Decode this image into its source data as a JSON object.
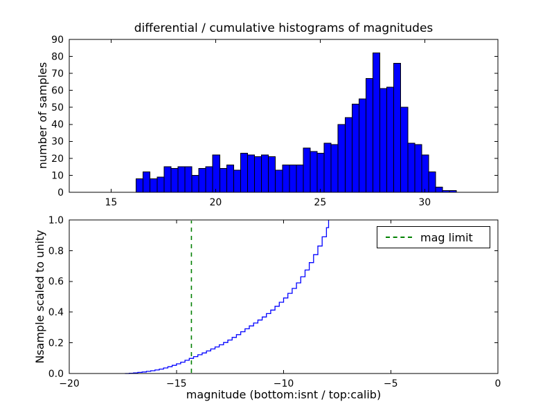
{
  "figure": {
    "title": "differential / cumulative histograms of magnitudes",
    "background": "#ffffff",
    "axis_color": "#000000"
  },
  "chart_data": [
    {
      "id": "differential-histogram",
      "type": "bar",
      "ylabel": "number of samples",
      "xlim": [
        13,
        33.5
      ],
      "ylim": [
        0,
        90
      ],
      "xtick_values": [
        15,
        20,
        25,
        30
      ],
      "xtick_labels": [
        "15",
        "20",
        "25",
        "30"
      ],
      "ytick_values": [
        0,
        10,
        20,
        30,
        40,
        50,
        60,
        70,
        80,
        90
      ],
      "ytick_labels": [
        "0",
        "10",
        "20",
        "30",
        "40",
        "50",
        "60",
        "70",
        "80",
        "90"
      ],
      "bin_start": 16.2,
      "bin_width": 0.333,
      "counts": [
        8,
        12,
        8,
        9,
        15,
        14,
        15,
        15,
        10,
        14,
        15,
        22,
        14,
        16,
        13,
        23,
        22,
        21,
        22,
        21,
        13,
        16,
        16,
        16,
        26,
        24,
        23,
        29,
        28,
        40,
        44,
        52,
        55,
        67,
        82,
        61,
        62,
        76,
        50,
        29,
        28,
        22,
        12,
        3,
        1,
        1
      ],
      "bar_fill": "#0000ff",
      "bar_edge": "#000000",
      "grid": false
    },
    {
      "id": "cumulative-histogram",
      "type": "line",
      "ylabel": "Nsample scaled to unity",
      "xlabel": "magnitude (bottom:isnt / top:calib)",
      "xlim": [
        -20,
        0
      ],
      "ylim": [
        0,
        1
      ],
      "xtick_values": [
        -20,
        -15,
        -10,
        -5,
        0
      ],
      "xtick_labels": [
        "−20",
        "−15",
        "−10",
        "−5",
        "0"
      ],
      "ytick_values": [
        0,
        0.2,
        0.4,
        0.6,
        0.8,
        1.0
      ],
      "ytick_labels": [
        "0.0",
        "0.2",
        "0.4",
        "0.6",
        "0.8",
        "1.0"
      ],
      "line_color": "#0000ff",
      "step_points": [
        [
          -17.4,
          0
        ],
        [
          -17.2,
          0.002
        ],
        [
          -17.0,
          0.004
        ],
        [
          -16.8,
          0.007
        ],
        [
          -16.6,
          0.01
        ],
        [
          -16.4,
          0.014
        ],
        [
          -16.2,
          0.018
        ],
        [
          -16.0,
          0.023
        ],
        [
          -15.8,
          0.029
        ],
        [
          -15.6,
          0.036
        ],
        [
          -15.4,
          0.044
        ],
        [
          -15.2,
          0.053
        ],
        [
          -15.0,
          0.063
        ],
        [
          -14.8,
          0.074
        ],
        [
          -14.6,
          0.086
        ],
        [
          -14.4,
          0.098
        ],
        [
          -14.2,
          0.11
        ],
        [
          -14.0,
          0.122
        ],
        [
          -13.8,
          0.134
        ],
        [
          -13.6,
          0.147
        ],
        [
          -13.4,
          0.16
        ],
        [
          -13.2,
          0.173
        ],
        [
          -13.0,
          0.187
        ],
        [
          -12.8,
          0.202
        ],
        [
          -12.6,
          0.218
        ],
        [
          -12.4,
          0.235
        ],
        [
          -12.2,
          0.253
        ],
        [
          -12.0,
          0.272
        ],
        [
          -11.8,
          0.291
        ],
        [
          -11.6,
          0.31
        ],
        [
          -11.4,
          0.329
        ],
        [
          -11.2,
          0.348
        ],
        [
          -11.0,
          0.368
        ],
        [
          -10.8,
          0.39
        ],
        [
          -10.6,
          0.413
        ],
        [
          -10.4,
          0.438
        ],
        [
          -10.2,
          0.464
        ],
        [
          -10.0,
          0.492
        ],
        [
          -9.8,
          0.522
        ],
        [
          -9.6,
          0.554
        ],
        [
          -9.4,
          0.59
        ],
        [
          -9.2,
          0.63
        ],
        [
          -9.0,
          0.674
        ],
        [
          -8.8,
          0.722
        ],
        [
          -8.6,
          0.774
        ],
        [
          -8.4,
          0.83
        ],
        [
          -8.2,
          0.89
        ],
        [
          -8.0,
          0.95
        ],
        [
          -7.9,
          1.0
        ]
      ],
      "mag_limit": {
        "x": -14.3,
        "color": "#008000",
        "label": "mag limit"
      },
      "legend_position": "upper right",
      "grid": false
    }
  ]
}
